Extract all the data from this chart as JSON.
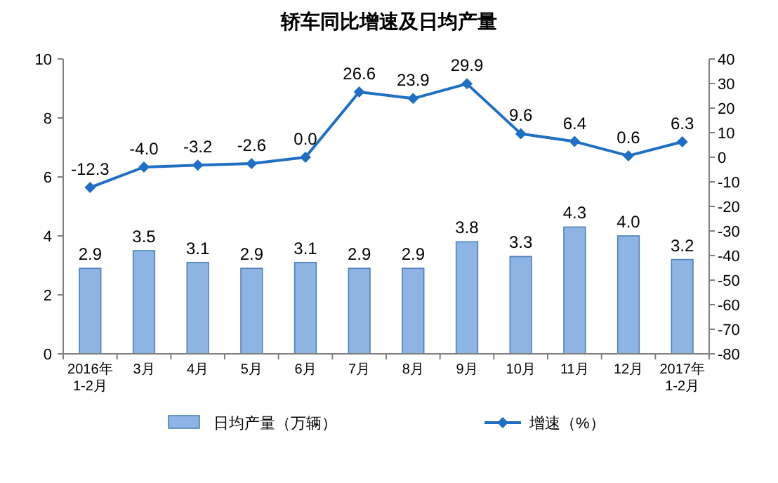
{
  "chart_data": {
    "type": "bar",
    "title": "轿车同比增速及日均产量",
    "categories": [
      "2016年\n1-2月",
      "3月",
      "4月",
      "5月",
      "6月",
      "7月",
      "8月",
      "9月",
      "10月",
      "11月",
      "12月",
      "2017年\n1-2月"
    ],
    "series": [
      {
        "name": "日均产量（万辆）",
        "color": "#8db4e2",
        "values": [
          2.9,
          3.5,
          3.1,
          2.9,
          3.1,
          2.9,
          2.9,
          3.8,
          3.3,
          4.3,
          4.0,
          3.2
        ],
        "value_labels": [
          "2.9",
          "3.5",
          "3.1",
          "2.9",
          "3.1",
          "2.9",
          "2.9",
          "3.8",
          "3.3",
          "4.3",
          "4.0",
          "3.2"
        ]
      },
      {
        "name": "增速（%）",
        "type": "line",
        "axis": "y2",
        "color": "#1f6fc5",
        "marker": "diamond",
        "values": [
          -12.3,
          -4.0,
          -3.2,
          -2.6,
          0.0,
          26.6,
          23.9,
          29.9,
          9.6,
          6.4,
          0.6,
          6.3
        ],
        "value_labels": [
          "-12.3",
          "-4.0",
          "-3.2",
          "-2.6",
          "0.0",
          "26.6",
          "23.9",
          "29.9",
          "9.6",
          "6.4",
          "0.6",
          "6.3"
        ]
      }
    ],
    "ylim": [
      0,
      10
    ],
    "yticks": [
      0,
      2,
      4,
      6,
      8,
      10
    ],
    "y2lim": [
      -80,
      40
    ],
    "y2ticks": [
      -80,
      -70,
      -60,
      -50,
      -40,
      -30,
      -20,
      -10,
      0,
      10,
      20,
      30,
      40
    ],
    "grid": false,
    "legend": "bottom"
  }
}
